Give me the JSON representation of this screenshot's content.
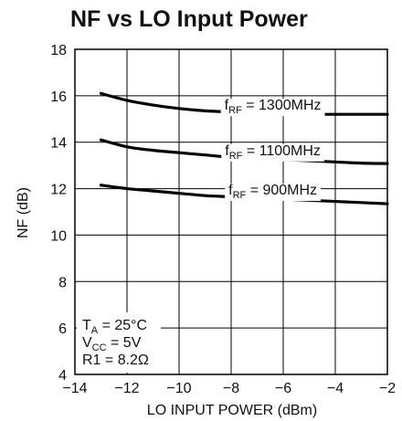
{
  "chart_data": {
    "type": "line",
    "title": "NF vs LO Input Power",
    "xlabel": "LO INPUT POWER (dBm)",
    "ylabel": "NF (dB)",
    "xlim": [
      -14,
      -2
    ],
    "ylim": [
      4,
      18
    ],
    "xticks": [
      "−14",
      "−12",
      "−10",
      "−8",
      "−6",
      "−4",
      "−2"
    ],
    "yticks": [
      "4",
      "6",
      "8",
      "10",
      "12",
      "14",
      "16",
      "18"
    ],
    "grid": true,
    "series": [
      {
        "name": "fRF = 1300MHz",
        "label_main": "f",
        "label_sub": "RF",
        "label_rest": " = 1300MHz",
        "x": [
          -13,
          -12,
          -11,
          -10,
          -9,
          -8,
          -7,
          -6,
          -5,
          -4,
          -3,
          -2
        ],
        "y": [
          16.1,
          15.8,
          15.6,
          15.45,
          15.35,
          15.3,
          15.25,
          15.2,
          15.2,
          15.2,
          15.2,
          15.2
        ]
      },
      {
        "name": "fRF = 1100MHz",
        "label_main": "f",
        "label_sub": "RF",
        "label_rest": " = 1100MHz",
        "x": [
          -13,
          -12,
          -11,
          -10,
          -9,
          -8,
          -7,
          -6,
          -5,
          -4,
          -3,
          -2
        ],
        "y": [
          14.1,
          13.8,
          13.65,
          13.55,
          13.45,
          13.35,
          13.3,
          13.25,
          13.2,
          13.15,
          13.1,
          13.08
        ]
      },
      {
        "name": "fRF = 900MHz",
        "label_main": "f",
        "label_sub": "RF",
        "label_rest": " = 900MHz",
        "x": [
          -13,
          -12,
          -11,
          -10,
          -9,
          -8,
          -7,
          -6,
          -5,
          -4,
          -3,
          -2
        ],
        "y": [
          12.15,
          12.0,
          11.9,
          11.8,
          11.7,
          11.65,
          11.6,
          11.55,
          11.5,
          11.45,
          11.4,
          11.35
        ]
      }
    ],
    "conditions": [
      {
        "main": "T",
        "sub": "A",
        "rest": " = 25°C"
      },
      {
        "main": "V",
        "sub": "CC",
        "rest": " = 5V"
      },
      {
        "main": "R1 = 8.2Ω",
        "sub": "",
        "rest": ""
      }
    ],
    "line_color": "#000000",
    "grid_color": "#000000"
  }
}
